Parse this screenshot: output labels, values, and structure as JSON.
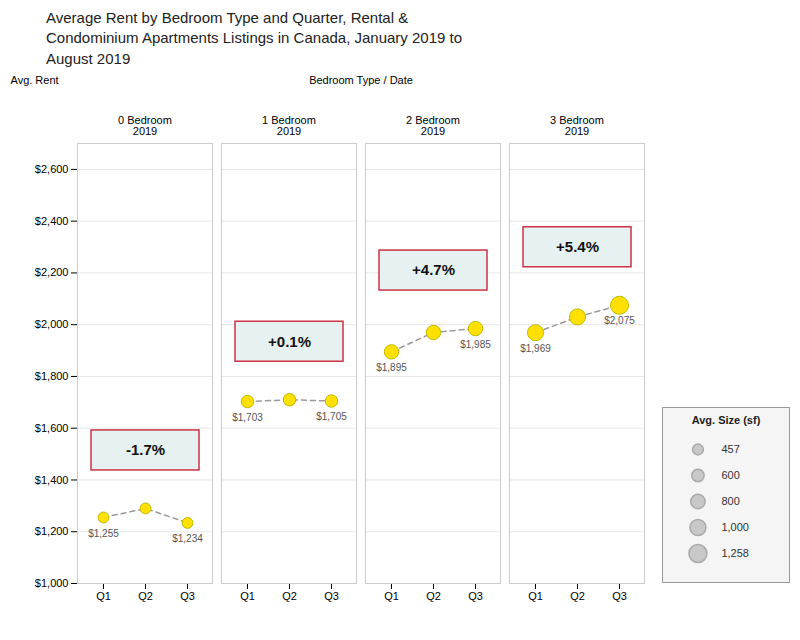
{
  "chart_data": {
    "type": "dot",
    "title": "Average Rent by Bedroom Type and Quarter, Rental &\nCondominium Apartments Listings in Canada, January 2019 to\nAugust 2019",
    "group_title": "Bedroom Type / Date",
    "ylabel": "Avg. Rent",
    "categories": [
      "Q1",
      "Q2",
      "Q3"
    ],
    "groups": [
      {
        "name": "0 Bedroom\n2019",
        "values": [
          1255,
          1290,
          1234
        ],
        "sizes": [
          457,
          457,
          457
        ],
        "value_labels": [
          "$1,255",
          null,
          "$1,234"
        ],
        "annotation": "-1.7%"
      },
      {
        "name": "1 Bedroom\n2019",
        "values": [
          1703,
          1710,
          1705
        ],
        "sizes": [
          600,
          600,
          600
        ],
        "value_labels": [
          "$1,703",
          null,
          "$1,705"
        ],
        "annotation": "+0.1%"
      },
      {
        "name": "2 Bedroom\n2019",
        "values": [
          1895,
          1970,
          1985
        ],
        "sizes": [
          800,
          800,
          800
        ],
        "value_labels": [
          "$1,895",
          null,
          "$1,985"
        ],
        "annotation": "+4.7%"
      },
      {
        "name": "3 Bedroom\n2019",
        "values": [
          1969,
          2030,
          2075
        ],
        "sizes": [
          1000,
          1000,
          1258
        ],
        "value_labels": [
          "$1,969",
          null,
          "$2,075"
        ],
        "annotation": "+5.4%"
      }
    ],
    "ylim": [
      1000,
      2700
    ],
    "yticks": [
      {
        "value": 1000,
        "label": "$1,000"
      },
      {
        "value": 1200,
        "label": "$1,200"
      },
      {
        "value": 1400,
        "label": "$1,400"
      },
      {
        "value": 1600,
        "label": "$1,600"
      },
      {
        "value": 1800,
        "label": "$1,800"
      },
      {
        "value": 2000,
        "label": "$2,000"
      },
      {
        "value": 2200,
        "label": "$2,200"
      },
      {
        "value": 2400,
        "label": "$2,400"
      },
      {
        "value": 2600,
        "label": "$2,600"
      }
    ],
    "grid": true,
    "data_labels": true,
    "color": "#FFE000",
    "marker": "circle",
    "line_style": "dashed",
    "size_legend": {
      "title": "Avg. Size (sf)",
      "values": [
        457,
        600,
        800,
        {
          "value": 1000,
          "label": "1,000"
        },
        {
          "value": 1258,
          "label": "1,258"
        }
      ]
    }
  }
}
